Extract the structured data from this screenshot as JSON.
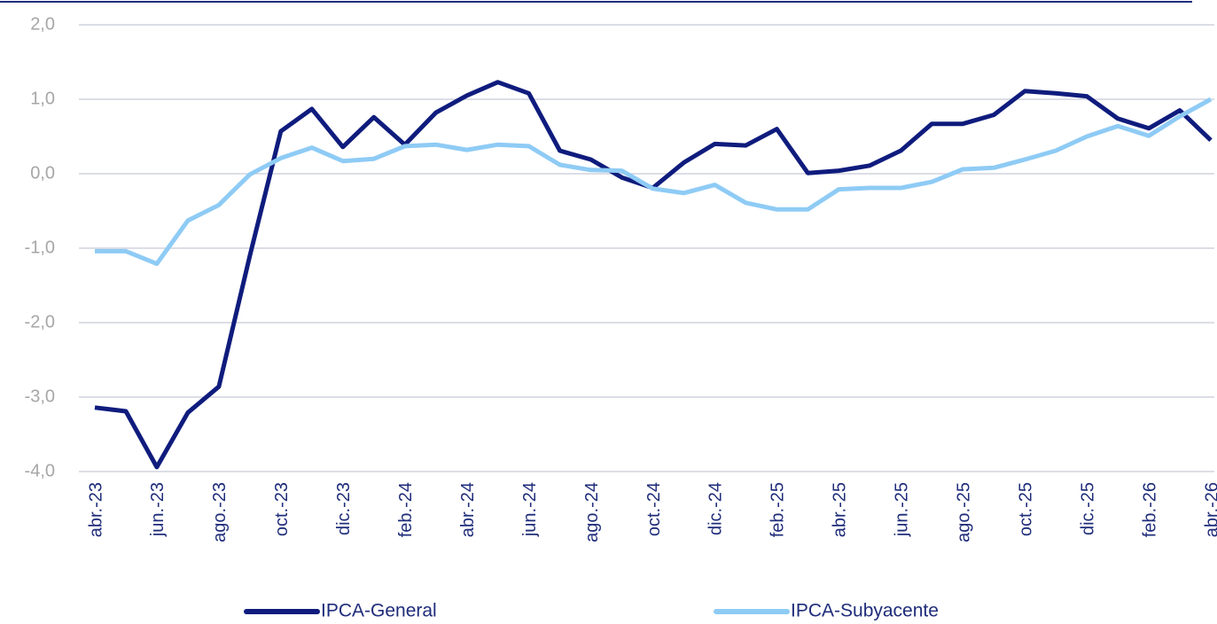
{
  "chart_data": {
    "type": "line",
    "categories": [
      "abr.-23",
      null,
      "jun.-23",
      null,
      "ago.-23",
      null,
      "oct.-23",
      null,
      "dic.-23",
      null,
      "feb.-24",
      null,
      "abr.-24",
      null,
      "jun.-24",
      null,
      "ago.-24",
      null,
      "oct.-24",
      null,
      "dic.-24",
      null,
      "feb.-25",
      null,
      "abr.-25",
      null,
      "jun.-25",
      null,
      "ago.-25",
      null,
      "oct.-25",
      null,
      "dic.-25",
      null,
      "feb.-26",
      null,
      "abr.-26"
    ],
    "series": [
      {
        "name": "IPCA-General",
        "color": "#0f1c7d",
        "values": [
          -3.14,
          -3.19,
          -3.94,
          -3.21,
          -2.86,
          -1.1,
          0.57,
          0.87,
          0.36,
          0.76,
          0.39,
          0.82,
          1.05,
          1.23,
          1.08,
          0.31,
          0.19,
          -0.05,
          -0.19,
          0.15,
          0.4,
          0.38,
          0.6,
          0.01,
          0.04,
          0.11,
          0.31,
          0.67,
          0.67,
          0.79,
          1.11,
          1.08,
          1.04,
          0.74,
          0.61,
          0.85,
          0.45
        ]
      },
      {
        "name": "IPCA-Subyacente",
        "color": "#8ecbf5",
        "values": [
          -1.04,
          -1.04,
          -1.21,
          -0.63,
          -0.42,
          -0.01,
          0.21,
          0.35,
          0.17,
          0.2,
          0.37,
          0.39,
          0.32,
          0.39,
          0.37,
          0.12,
          0.05,
          0.04,
          -0.2,
          -0.26,
          -0.15,
          -0.39,
          -0.48,
          -0.48,
          -0.21,
          -0.19,
          -0.19,
          -0.11,
          0.06,
          0.08,
          0.19,
          0.31,
          0.5,
          0.64,
          0.51,
          0.77,
          1.0
        ]
      }
    ],
    "ylim": [
      -4,
      2
    ],
    "yticks": [
      {
        "value": -4,
        "label": "-4,0"
      },
      {
        "value": -3,
        "label": "-3,0"
      },
      {
        "value": -2,
        "label": "-2,0"
      },
      {
        "value": -1,
        "label": "-1,0"
      },
      {
        "value": 0,
        "label": "0,0"
      },
      {
        "value": 1,
        "label": "1,0"
      },
      {
        "value": 2,
        "label": "2,0"
      }
    ],
    "grid": true,
    "legend": "bottom"
  }
}
